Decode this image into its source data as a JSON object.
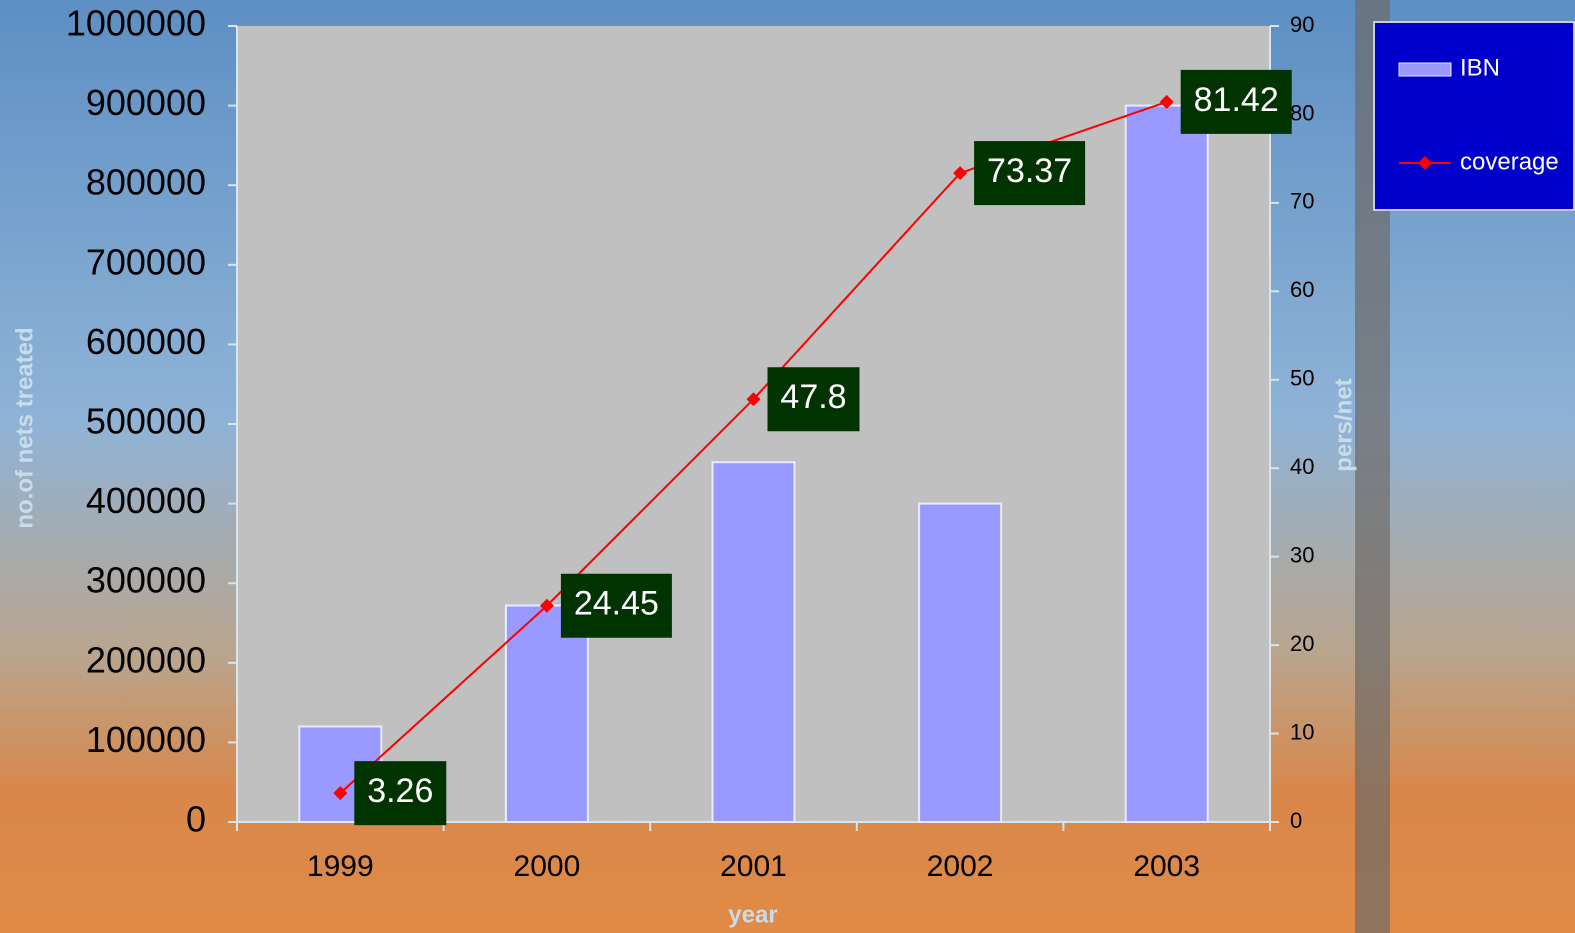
{
  "chart_data": {
    "type": "bar",
    "categories": [
      "1999",
      "2000",
      "2001",
      "2002",
      "2003"
    ],
    "series": [
      {
        "name": "IBN",
        "type": "bar",
        "color": "#9999ff",
        "values": [
          120000,
          272000,
          452000,
          400000,
          900000
        ]
      },
      {
        "name": "coverage",
        "type": "line",
        "axis": "y2",
        "color": "#ff0000",
        "values": [
          3.26,
          24.45,
          47.8,
          73.37,
          81.42
        ]
      }
    ],
    "ylabel": "no.of nets treated",
    "y2label": "pers/net",
    "xlabel": "year",
    "ylim": [
      0,
      1000000
    ],
    "yticks": [
      0,
      100000,
      200000,
      300000,
      400000,
      500000,
      600000,
      700000,
      800000,
      900000,
      1000000
    ],
    "y2lim": [
      0,
      90
    ],
    "y2ticks": [
      0,
      10,
      20,
      30,
      40,
      50,
      60,
      70,
      80,
      90
    ],
    "grid": false,
    "legend": "top-right",
    "plot_background": "#c0c0c0",
    "label_background": "#003300"
  }
}
